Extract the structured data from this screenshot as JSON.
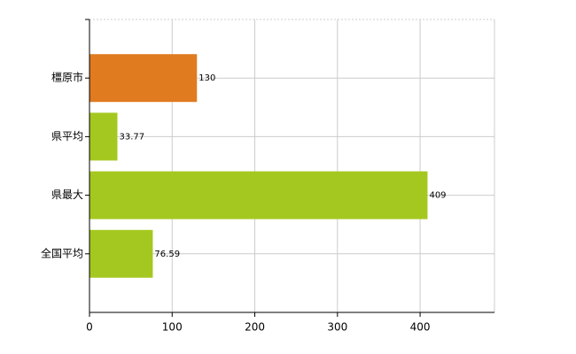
{
  "chart_data": {
    "type": "bar",
    "orientation": "horizontal",
    "categories": [
      "橿原市",
      "県平均",
      "県最大",
      "全国平均"
    ],
    "values": [
      130,
      33.77,
      409,
      76.59
    ],
    "colors": [
      "#e07b20",
      "#a5c820",
      "#a5c820",
      "#a5c820"
    ],
    "xlim": [
      0,
      490
    ],
    "xticks": [
      0,
      100,
      200,
      300,
      400
    ],
    "grid": true
  }
}
